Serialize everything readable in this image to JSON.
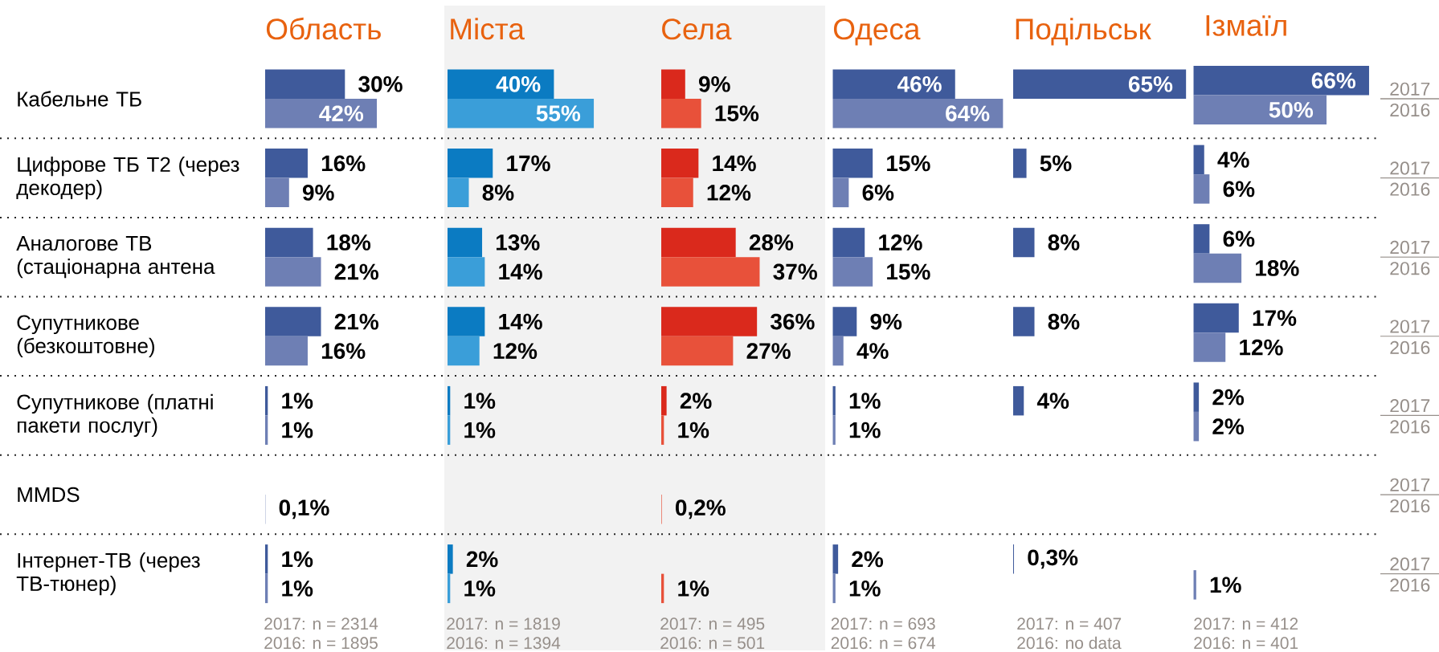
{
  "chart_data": [
    {
      "type": "bar",
      "orientation": "horizontal",
      "title": "Область",
      "categories": [
        "Кабельне ТБ",
        "Цифрове ТБ Т2 (через декодер)",
        "Аналогове ТВ (стаціонарна антена",
        "Супутникове (безкоштовне)",
        "Супутникове (платні пакети послуг)",
        "MMDS",
        "Інтернет-ТВ (через ТВ-тюнер)"
      ],
      "grid": "y",
      "tick_labels": "y",
      "series": [
        {
          "color": "#3f5a9b",
          "values": [
            30,
            16,
            18,
            21,
            1,
            null,
            1
          ],
          "value_labels": [
            "30%",
            "16%",
            "18%",
            "21%",
            "1%",
            null,
            "1%"
          ]
        },
        {
          "color": "#6e7fb4",
          "values": [
            42,
            9,
            21,
            16,
            1,
            0.1,
            1
          ],
          "value_labels": [
            "42%",
            "9%",
            "21%",
            "16%",
            "1%",
            "0,1%",
            "1%"
          ]
        }
      ],
      "annotations": [
        "2017: n = 2314",
        "2016: n = 1895"
      ]
    },
    {
      "type": "bar",
      "orientation": "horizontal",
      "title": "Міста",
      "categories": [
        null,
        null,
        null,
        null,
        null,
        null,
        null
      ],
      "grid": "y",
      "tick_labels": false,
      "series": [
        {
          "color": "#0b7bc2",
          "values": [
            40,
            17,
            13,
            14,
            1,
            null,
            2
          ],
          "value_labels": [
            "40%",
            "17%",
            "13%",
            "14%",
            "1%",
            null,
            "2%"
          ]
        },
        {
          "color": "#3a9ed9",
          "values": [
            55,
            8,
            14,
            12,
            1,
            null,
            1
          ],
          "value_labels": [
            "55%",
            "8%",
            "14%",
            "12%",
            "1%",
            null,
            "1%"
          ]
        }
      ],
      "annotations": [
        "2017: n = 1819",
        "2016: n = 1394"
      ]
    },
    {
      "type": "bar",
      "orientation": "horizontal",
      "title": "Села",
      "categories": [
        null,
        null,
        null,
        null,
        null,
        null,
        null
      ],
      "grid": "y",
      "tick_labels": false,
      "series": [
        {
          "color": "#da291c",
          "values": [
            9,
            14,
            28,
            36,
            2,
            null,
            null
          ],
          "value_labels": [
            "9%",
            "14%",
            "28%",
            "36%",
            "2%",
            null,
            null
          ]
        },
        {
          "color": "#e8513a",
          "values": [
            15,
            12,
            37,
            27,
            1,
            0.2,
            1
          ],
          "value_labels": [
            "15%",
            "12%",
            "37%",
            "27%",
            "1%",
            "0,2%",
            "1%"
          ]
        }
      ],
      "annotations": [
        "2017: n = 495",
        "2016: n = 501"
      ]
    },
    {
      "type": "bar",
      "orientation": "horizontal",
      "title": "Одеса",
      "categories": [
        null,
        null,
        null,
        null,
        null,
        null,
        null
      ],
      "grid": "y",
      "tick_labels": false,
      "series": [
        {
          "color": "#3f5a9b",
          "values": [
            46,
            15,
            12,
            9,
            1,
            null,
            2
          ],
          "value_labels": [
            "46%",
            "15%",
            "12%",
            "9%",
            "1%",
            null,
            "2%"
          ]
        },
        {
          "color": "#6e7fb4",
          "values": [
            64,
            6,
            15,
            4,
            1,
            null,
            1
          ],
          "value_labels": [
            "64%",
            "6%",
            "15%",
            "4%",
            "1%",
            null,
            "1%"
          ]
        }
      ],
      "annotations": [
        "2017: n = 693",
        "2016: n = 674"
      ]
    },
    {
      "type": "bar",
      "orientation": "horizontal",
      "title": "Подільськ",
      "categories": [
        null,
        null,
        null,
        null,
        null,
        null,
        null
      ],
      "grid": "y",
      "tick_labels": false,
      "series": [
        {
          "color": "#3f5a9b",
          "values": [
            65,
            5,
            8,
            8,
            4,
            null,
            0.3
          ],
          "value_labels": [
            "65%",
            "5%",
            "8%",
            "8%",
            "4%",
            null,
            "0,3%"
          ]
        }
      ],
      "annotations": [
        "2017: n = 407",
        "2016: no data"
      ]
    },
    {
      "type": "bar",
      "orientation": "horizontal",
      "title": "Ізмаїл",
      "categories": [
        null,
        null,
        null,
        null,
        null,
        null,
        null
      ],
      "grid": "y",
      "tick_labels": false,
      "series": [
        {
          "name": "2017",
          "color": "#3f5a9b",
          "values": [
            66,
            4,
            6,
            17,
            2,
            null,
            null
          ],
          "value_labels": [
            "66%",
            "4%",
            "6%",
            "17%",
            "2%",
            null,
            null
          ]
        },
        {
          "name": "2016",
          "color": "#6e7fb4",
          "values": [
            50,
            6,
            18,
            12,
            2,
            null,
            1
          ],
          "value_labels": [
            "50%",
            "6%",
            "18%",
            "12%",
            "2%",
            null,
            "1%"
          ]
        }
      ],
      "annotations": [
        "2017: n = 412",
        "2016: n = 401"
      ]
    }
  ]
}
